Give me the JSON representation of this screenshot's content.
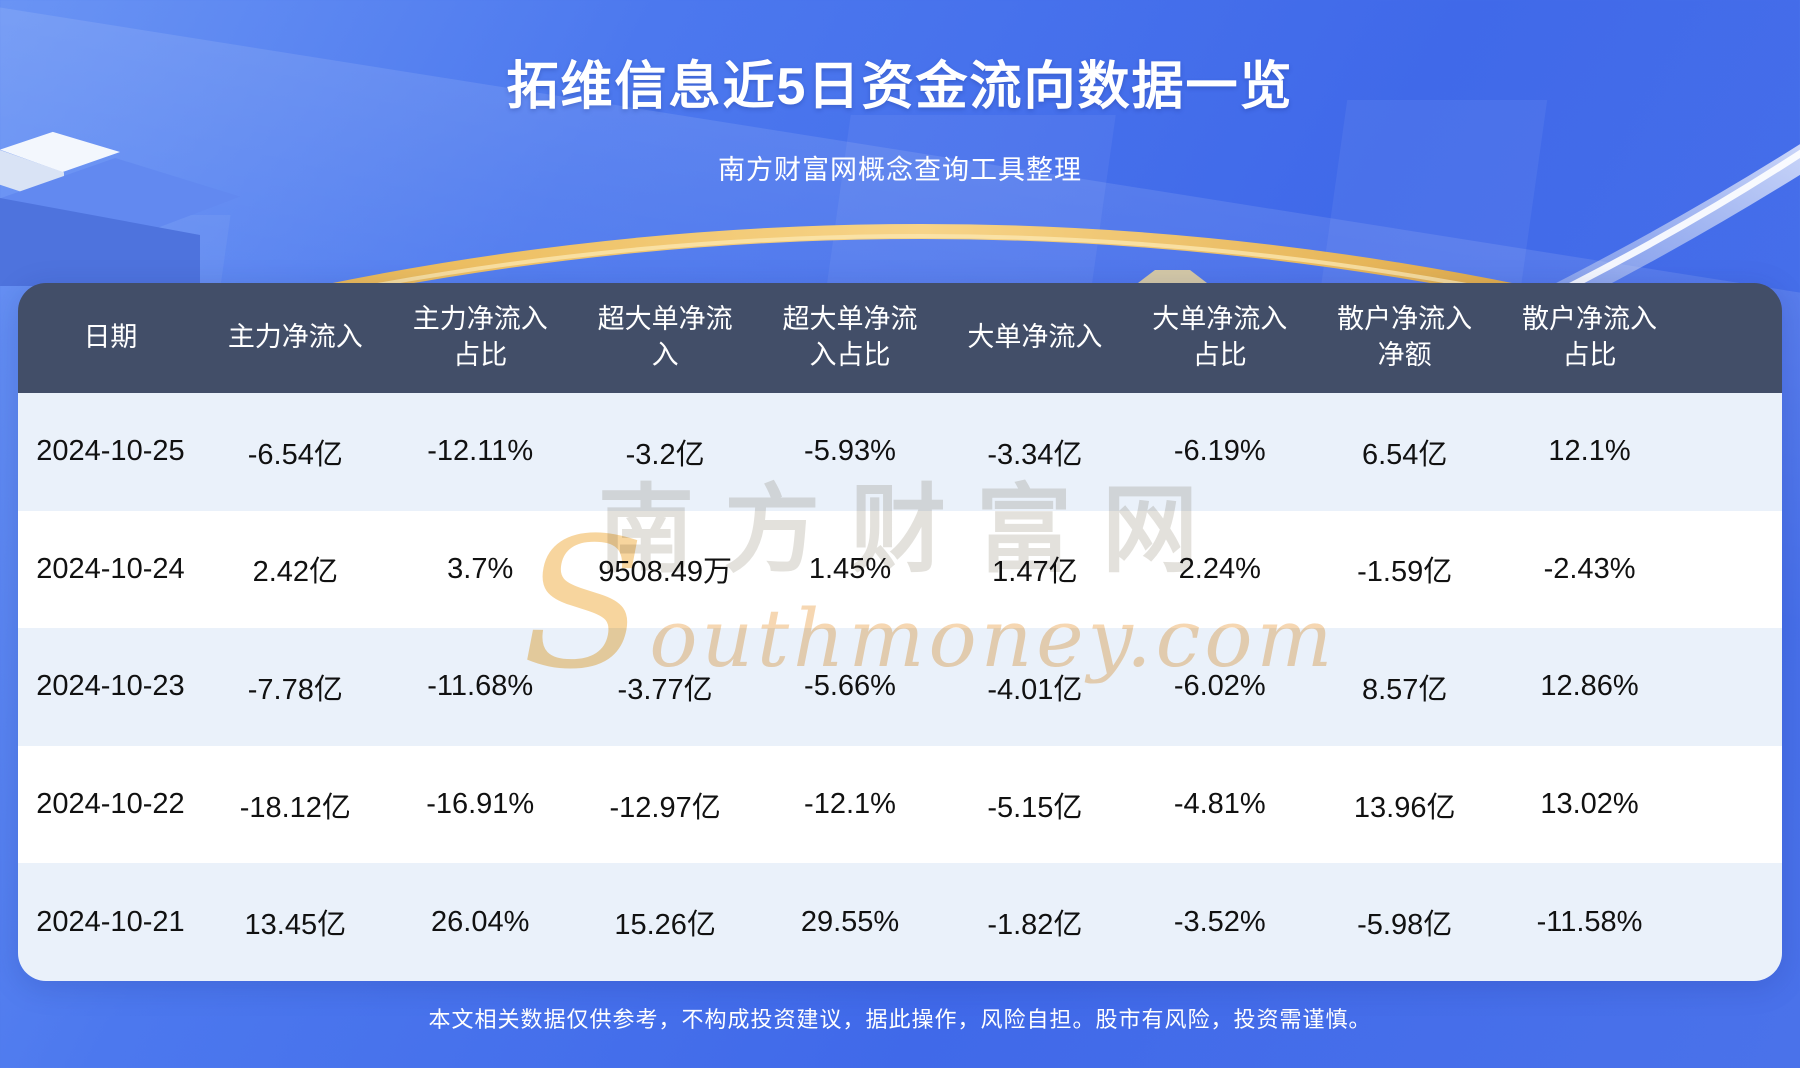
{
  "page": {
    "title": "拓维信息近5日资金流向数据一览",
    "subtitle": "南方财富网概念查询工具整理",
    "disclaimer": "本文相关数据仅供参考，不构成投资建议，据此操作，风险自担。股市有风险，投资需谨慎。"
  },
  "watermark": {
    "cn": "南方财富网",
    "en": "Southmoney.com"
  },
  "colors": {
    "background_blue": "#4571ec",
    "table_header_bg": "#424e68",
    "row_stripe": "#eaf1fa",
    "row_white": "#ffffff",
    "gold_accent": "#eec06a",
    "silver_accent": "#e8edf6",
    "text_dark": "#111111",
    "text_light": "#ffffff"
  },
  "chart_data": {
    "type": "table",
    "title": "拓维信息近5日资金流向数据一览",
    "columns": [
      "日期",
      "主力净流入",
      "主力净流入占比",
      "超大单净流入",
      "超大单净流入占比",
      "大单净流入",
      "大单净流入占比",
      "散户净流入净额",
      "散户净流入占比"
    ],
    "rows": [
      [
        "2024-10-25",
        "-6.54亿",
        "-12.11%",
        "-3.2亿",
        "-5.93%",
        "-3.34亿",
        "-6.19%",
        "6.54亿",
        "12.1%"
      ],
      [
        "2024-10-24",
        "2.42亿",
        "3.7%",
        "9508.49万",
        "1.45%",
        "1.47亿",
        "2.24%",
        "-1.59亿",
        "-2.43%"
      ],
      [
        "2024-10-23",
        "-7.78亿",
        "-11.68%",
        "-3.77亿",
        "-5.66%",
        "-4.01亿",
        "-6.02%",
        "8.57亿",
        "12.86%"
      ],
      [
        "2024-10-22",
        "-18.12亿",
        "-16.91%",
        "-12.97亿",
        "-12.1%",
        "-5.15亿",
        "-4.81%",
        "13.96亿",
        "13.02%"
      ],
      [
        "2024-10-21",
        "13.45亿",
        "26.04%",
        "15.26亿",
        "29.55%",
        "-1.82亿",
        "-3.52%",
        "-5.98亿",
        "-11.58%"
      ]
    ]
  }
}
